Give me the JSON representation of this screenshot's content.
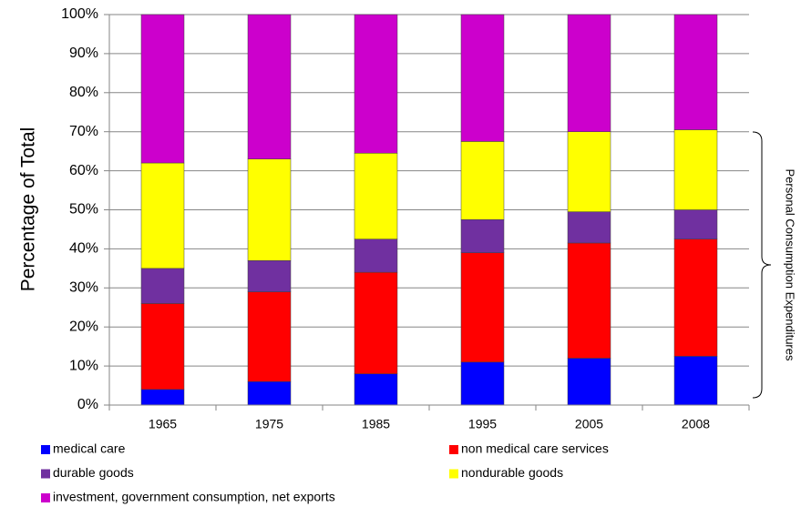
{
  "chart_data": {
    "type": "stacked_bar",
    "y_label": "Percentage of  Total",
    "annotation": "Personal Consumption Expenditures",
    "categories": [
      "1965",
      "1975",
      "1985",
      "1995",
      "2005",
      "2008"
    ],
    "series": [
      {
        "name": "medical care",
        "color": "#0000ff",
        "values": [
          4,
          6,
          8,
          11,
          12,
          12.5
        ]
      },
      {
        "name": "non medical care services",
        "color": "#ff0000",
        "values": [
          22,
          23,
          26,
          28,
          29.5,
          30
        ]
      },
      {
        "name": "durable goods",
        "color": "#7030a0",
        "values": [
          9,
          8,
          8.5,
          8.5,
          8,
          7.5
        ]
      },
      {
        "name": "nondurable goods",
        "color": "#ffff00",
        "values": [
          27,
          26,
          22,
          20,
          20.5,
          20.5
        ]
      },
      {
        "name": "investment, government consumption,  net exports",
        "color": "#cc00cc",
        "values": [
          38,
          37,
          35.5,
          32.5,
          30,
          29.5
        ]
      }
    ],
    "ylim": [
      0,
      100
    ],
    "yticks": [
      {
        "value": 0,
        "label": "0%"
      },
      {
        "value": 10,
        "label": "10%"
      },
      {
        "value": 20,
        "label": "20%"
      },
      {
        "value": 30,
        "label": "30%"
      },
      {
        "value": 40,
        "label": "40%"
      },
      {
        "value": 50,
        "label": "50%"
      },
      {
        "value": 60,
        "label": "60%"
      },
      {
        "value": 70,
        "label": "70%"
      },
      {
        "value": 80,
        "label": "80%"
      },
      {
        "value": 90,
        "label": "90%"
      },
      {
        "value": 100,
        "label": "100%"
      }
    ],
    "grid": true
  }
}
